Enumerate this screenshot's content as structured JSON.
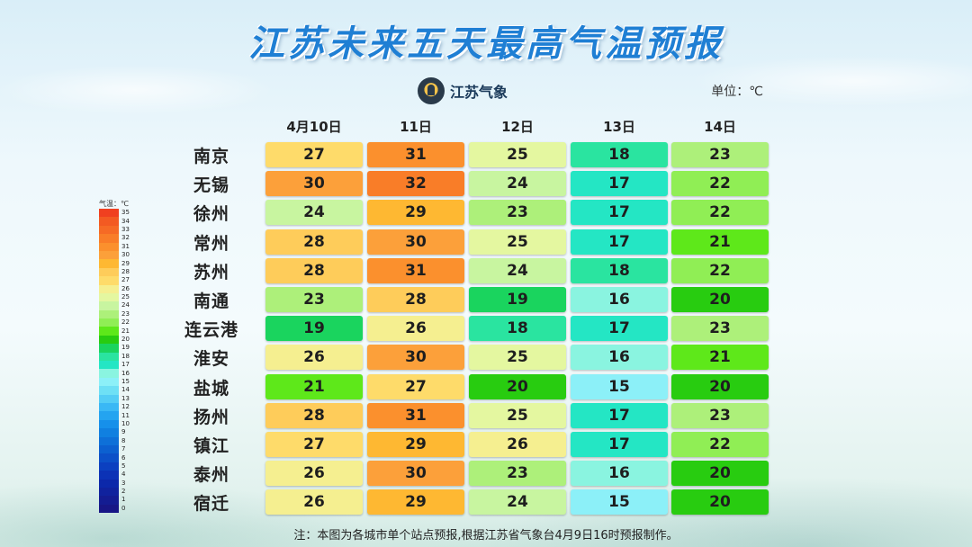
{
  "title": "江苏未来五天最高气温预报",
  "logo": {
    "text": "江苏气象",
    "icon": "meteorological-emblem-icon"
  },
  "unit_label": "单位：℃",
  "note": "注：本图为各城市单个站点预报,根据江苏省气象台4月9日16时预报制作。",
  "scale": {
    "label": "气温：℃",
    "min": 0,
    "max": 35,
    "colors": {
      "35": "#f04020",
      "34": "#f35a22",
      "33": "#f66a25",
      "32": "#f97d28",
      "31": "#fb902d",
      "30": "#fca03a",
      "29": "#feb832",
      "28": "#fecc5a",
      "27": "#fedb6a",
      "26": "#f5ef90",
      "25": "#e4f7a0",
      "24": "#c8f5a0",
      "23": "#adf07a",
      "22": "#90ee55",
      "21": "#5ee81a",
      "20": "#28cc10",
      "19": "#1ad45e",
      "18": "#2ae4a0",
      "17": "#24e6c4",
      "16": "#8af4e0",
      "15": "#8cf0f8",
      "14": "#6ee0f5",
      "13": "#54cdf5",
      "12": "#3ab8f5",
      "11": "#24a4f0",
      "10": "#1690ea",
      "9": "#1080e0",
      "8": "#0e70d8",
      "7": "#0c60d0",
      "6": "#0c50c8",
      "5": "#0c40c0",
      "4": "#0c32b6",
      "3": "#0c28aa",
      "2": "#10229e",
      "1": "#141c92",
      "0": "#181686"
    }
  },
  "chart_data": {
    "type": "table",
    "columns": [
      "4月10日",
      "11日",
      "12日",
      "13日",
      "14日"
    ],
    "rows": [
      {
        "city": "南京",
        "values": [
          27,
          31,
          25,
          18,
          23
        ]
      },
      {
        "city": "无锡",
        "values": [
          30,
          32,
          24,
          17,
          22
        ]
      },
      {
        "city": "徐州",
        "values": [
          24,
          29,
          23,
          17,
          22
        ]
      },
      {
        "city": "常州",
        "values": [
          28,
          30,
          25,
          17,
          21
        ]
      },
      {
        "city": "苏州",
        "values": [
          28,
          31,
          24,
          18,
          22
        ]
      },
      {
        "city": "南通",
        "values": [
          23,
          28,
          19,
          16,
          20
        ]
      },
      {
        "city": "连云港",
        "values": [
          19,
          26,
          18,
          17,
          23
        ]
      },
      {
        "city": "淮安",
        "values": [
          26,
          30,
          25,
          16,
          21
        ]
      },
      {
        "city": "盐城",
        "values": [
          21,
          27,
          20,
          15,
          20
        ]
      },
      {
        "city": "扬州",
        "values": [
          28,
          31,
          25,
          17,
          23
        ]
      },
      {
        "city": "镇江",
        "values": [
          27,
          29,
          26,
          17,
          22
        ]
      },
      {
        "city": "泰州",
        "values": [
          26,
          30,
          23,
          16,
          20
        ]
      },
      {
        "city": "宿迁",
        "values": [
          26,
          29,
          24,
          15,
          20
        ]
      }
    ]
  }
}
